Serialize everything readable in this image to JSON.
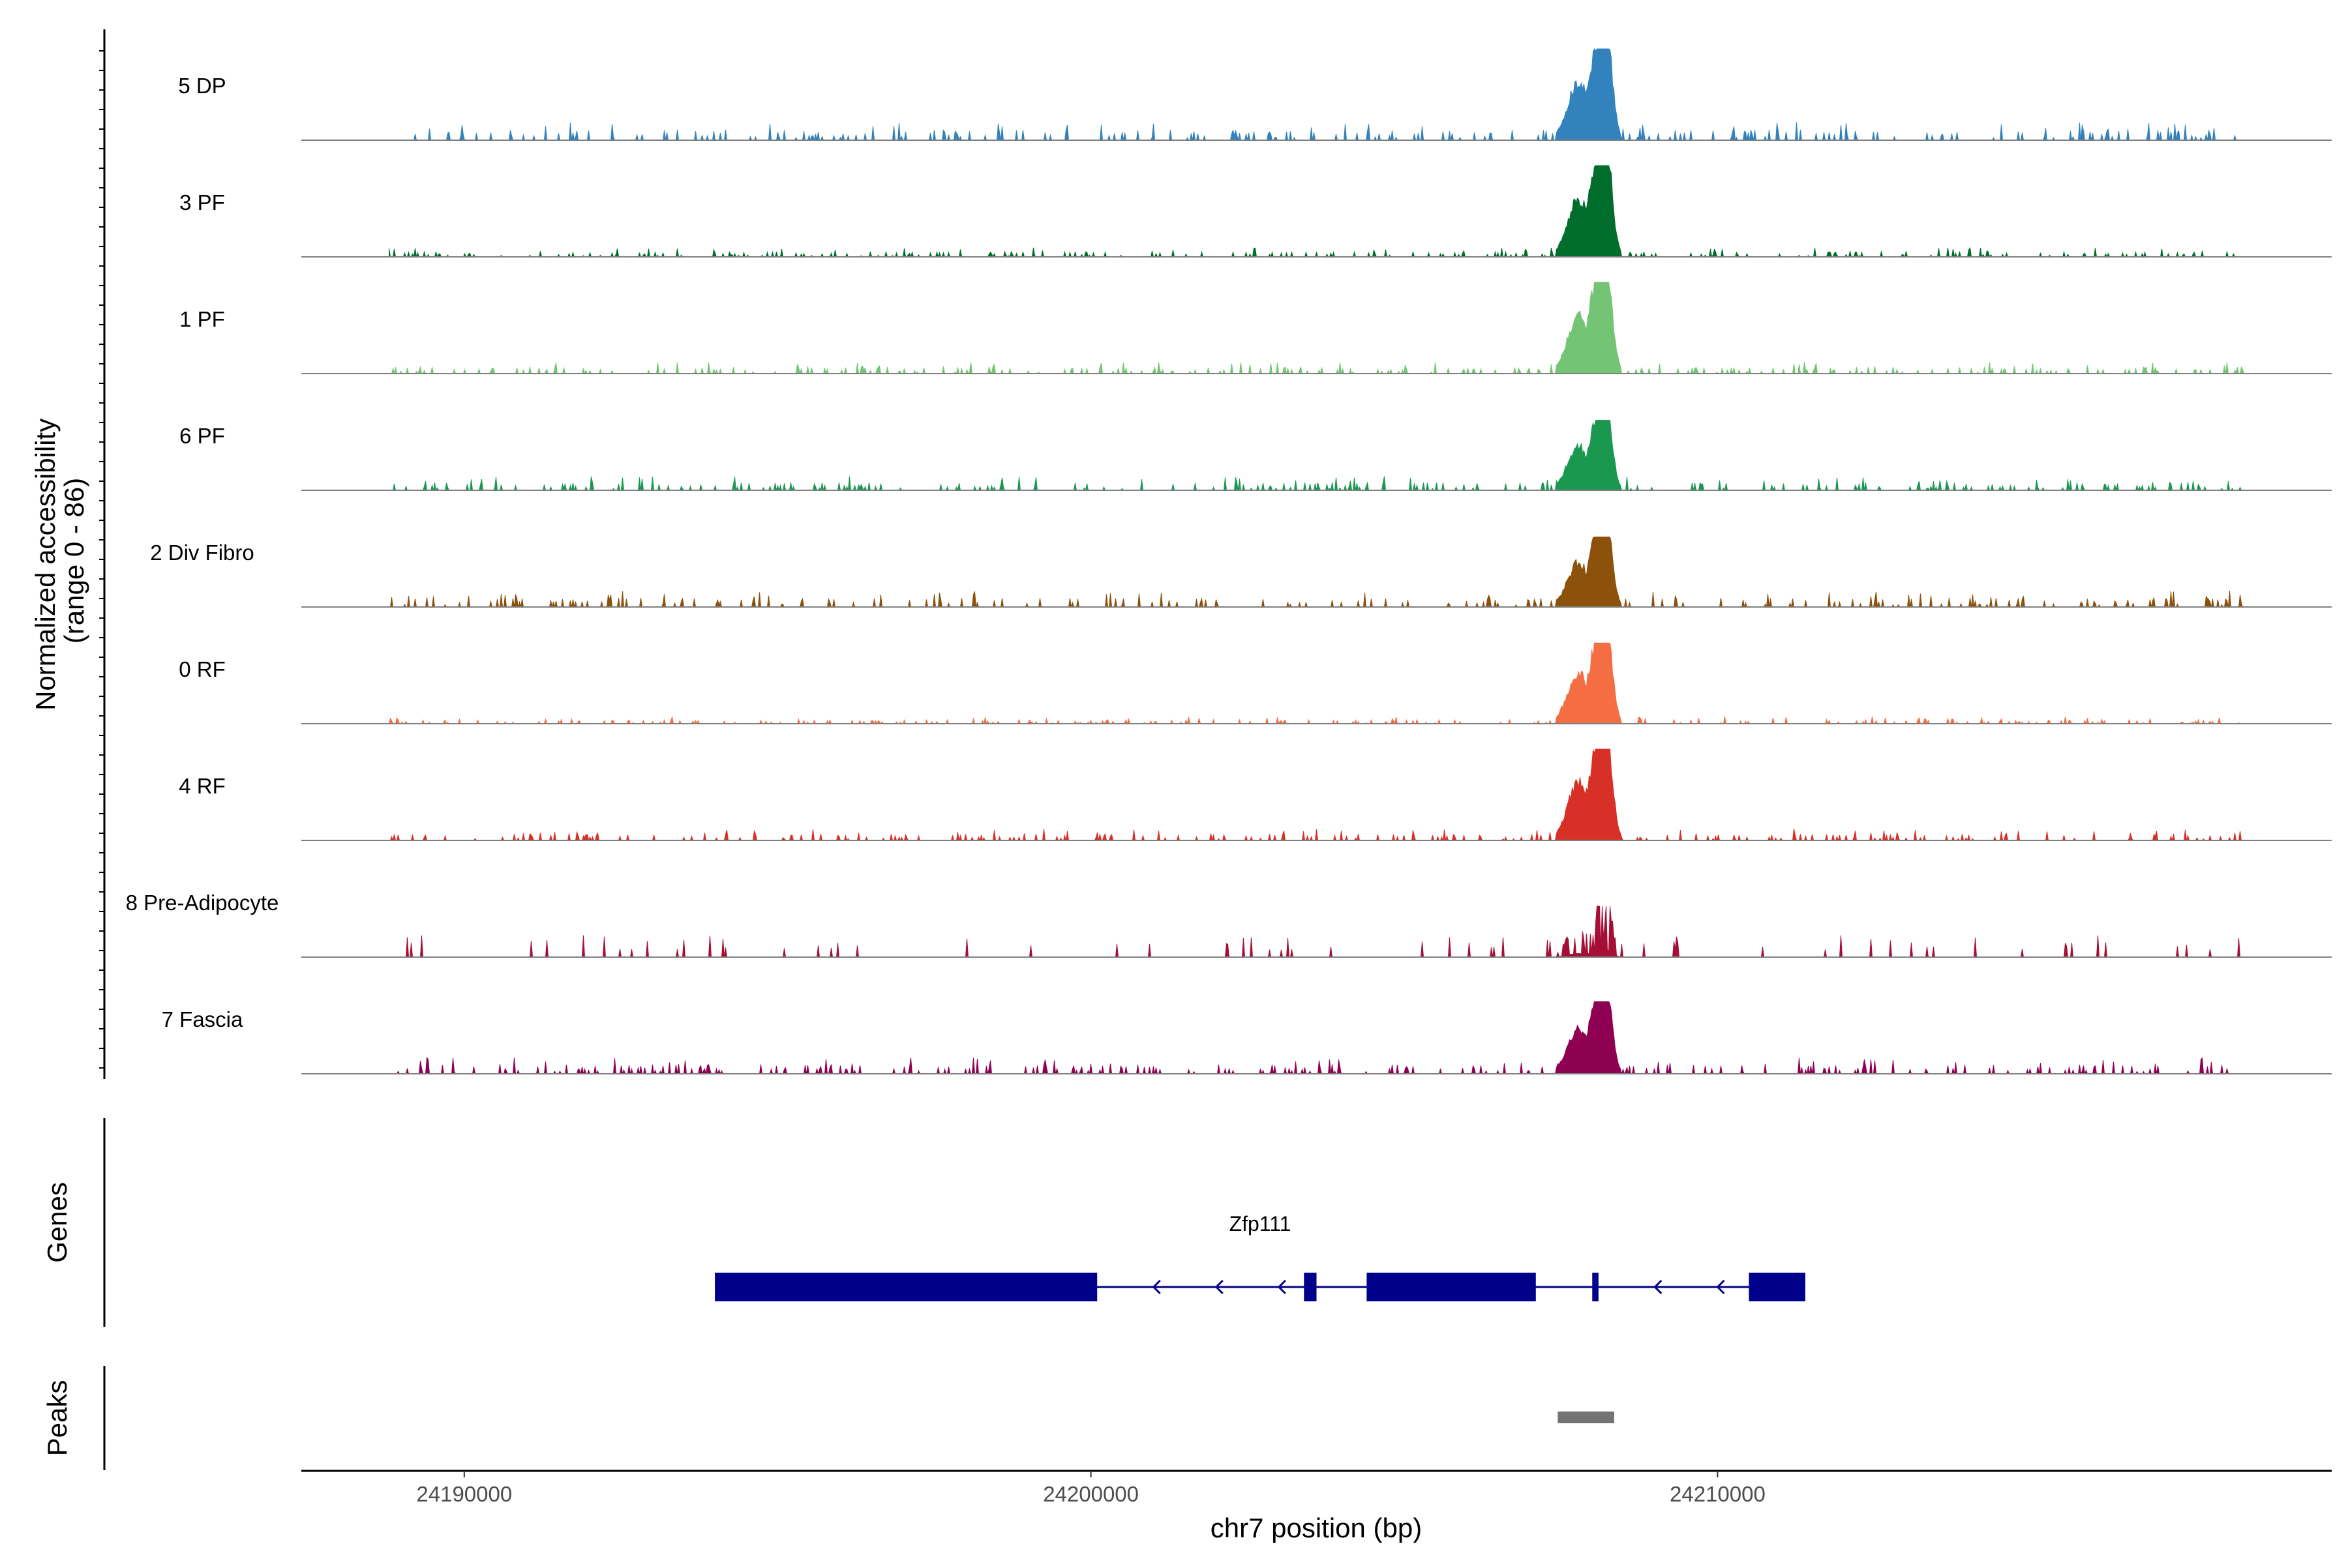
{
  "chart_data": {
    "type": "area",
    "title": "",
    "xlabel": "chr7 position (bp)",
    "ylabel": "Normalized accessibility",
    "ylabel_range": "(range 0 - 86)",
    "y_max": 86,
    "xlim": [
      24187400,
      24219800
    ],
    "x_ticks": [
      24190000,
      24200000,
      24210000
    ],
    "x_tick_labels": [
      "24190000",
      "24200000",
      "24210000"
    ],
    "tracks": [
      {
        "name": "5 DP",
        "color": "#3182BD",
        "peak_height": 86,
        "bg": 8,
        "style": "continuous"
      },
      {
        "name": "3 PF",
        "color": "#006D2C",
        "peak_height": 86,
        "bg": 4,
        "style": "continuous"
      },
      {
        "name": "1 PF",
        "color": "#74C476",
        "peak_height": 86,
        "bg": 5,
        "style": "continuous"
      },
      {
        "name": "6 PF",
        "color": "#1A9850",
        "peak_height": 66,
        "bg": 6,
        "style": "continuous"
      },
      {
        "name": "2 Div Fibro",
        "color": "#8C510A",
        "peak_height": 66,
        "bg": 7,
        "style": "continuous"
      },
      {
        "name": "0 RF",
        "color": "#F46D43",
        "peak_height": 76,
        "bg": 3,
        "style": "continuous"
      },
      {
        "name": "4 RF",
        "color": "#D73027",
        "peak_height": 86,
        "bg": 5,
        "style": "continuous"
      },
      {
        "name": "8 Pre-Adipocyte",
        "color": "#A50F35",
        "peak_height": 48,
        "bg": 12,
        "style": "sparse"
      },
      {
        "name": "7 Fascia",
        "color": "#8E0152",
        "peak_height": 68,
        "bg": 7,
        "style": "continuous"
      }
    ],
    "peak_center": 24208200,
    "genes": {
      "title": "Genes",
      "name": "Zfp111",
      "color": "#00008B",
      "strand": "-",
      "start": 24194000,
      "end": 24211400,
      "exons": [
        [
          24194000,
          24200100
        ],
        [
          24203400,
          24203600
        ],
        [
          24204400,
          24207100
        ],
        [
          24208000,
          24208100
        ],
        [
          24210500,
          24211400
        ]
      ]
    },
    "peaks": {
      "title": "Peaks",
      "color": "#737373",
      "regions": [
        [
          24207450,
          24208350
        ]
      ]
    }
  }
}
